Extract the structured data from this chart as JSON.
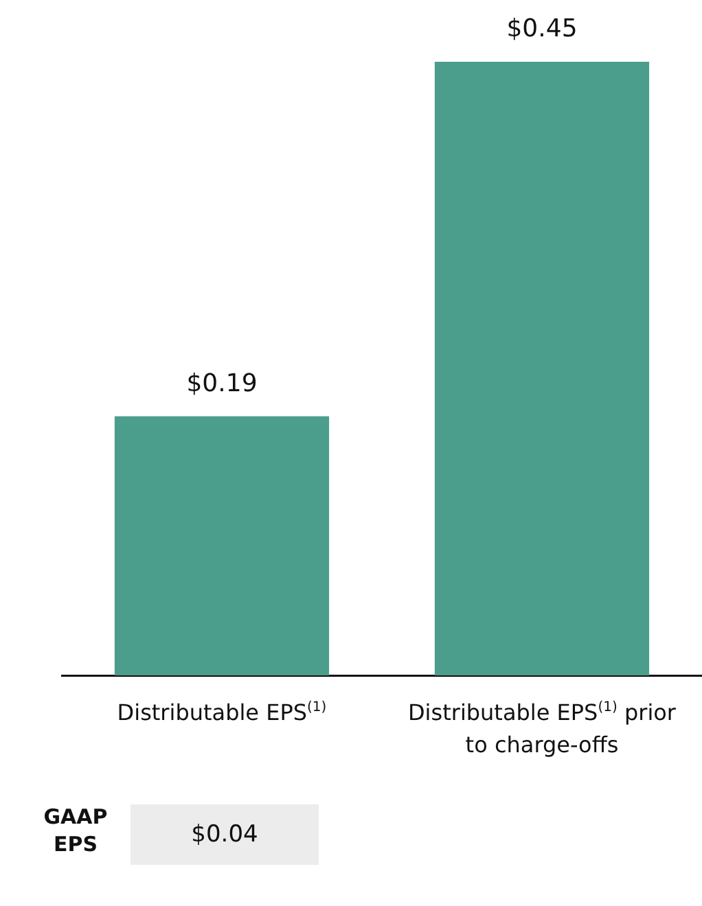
{
  "chart_data": {
    "type": "bar",
    "categories": [
      "Distributable EPS$^{(1)}$",
      "Distributable EPS$^{(1)}$ prior to charge-offs"
    ],
    "values": [
      0.19,
      0.45
    ],
    "color": "#4b9e8b",
    "value_labels": [
      "$0.19",
      "$0.45"
    ],
    "annotations": [
      "GAAP EPS",
      "$0.04"
    ]
  }
}
